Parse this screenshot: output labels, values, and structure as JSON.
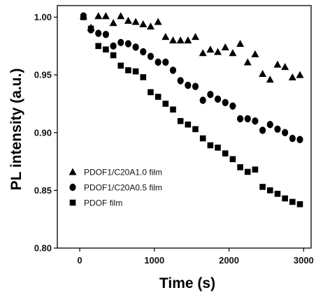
{
  "chart_data": {
    "type": "scatter",
    "title": "",
    "xlabel": "Time (s)",
    "ylabel": "PL intensity (a.u.)",
    "xlim": [
      -300,
      3100
    ],
    "ylim": [
      0.8,
      1.01
    ],
    "xticks": [
      0,
      1000,
      2000,
      3000
    ],
    "xtick_labels": [
      "0",
      "1000",
      "2000",
      "3000"
    ],
    "yticks": [
      0.8,
      0.85,
      0.9,
      0.95,
      1.0
    ],
    "ytick_labels": [
      "0.80",
      "0.85",
      "0.90",
      "0.95",
      "1.00"
    ],
    "grid": false,
    "legend_position": "bottom-left",
    "series": [
      {
        "name": "PDOF1/C20A1.0 film",
        "marker": "triangle",
        "color": "#000000",
        "x": [
          50,
          150,
          250,
          350,
          450,
          550,
          650,
          750,
          850,
          950,
          1050,
          1150,
          1250,
          1350,
          1450,
          1550,
          1650,
          1750,
          1850,
          1950,
          2050,
          2150,
          2250,
          2350,
          2450,
          2550,
          2650,
          2750,
          2850,
          2950
        ],
        "y": [
          1.001,
          0.991,
          1.001,
          1.001,
          0.995,
          1.001,
          0.997,
          0.996,
          0.994,
          0.992,
          0.996,
          0.983,
          0.98,
          0.98,
          0.98,
          0.983,
          0.969,
          0.972,
          0.97,
          0.974,
          0.969,
          0.977,
          0.961,
          0.968,
          0.951,
          0.946,
          0.959,
          0.957,
          0.948,
          0.95
        ]
      },
      {
        "name": "PDOF1/C20A0.5 film",
        "marker": "circle",
        "color": "#000000",
        "x": [
          50,
          150,
          250,
          350,
          450,
          550,
          650,
          750,
          850,
          950,
          1050,
          1150,
          1250,
          1350,
          1450,
          1550,
          1650,
          1750,
          1850,
          1950,
          2050,
          2150,
          2250,
          2350,
          2450,
          2550,
          2650,
          2750,
          2850,
          2950
        ],
        "y": [
          1.001,
          0.989,
          0.986,
          0.985,
          0.975,
          0.978,
          0.977,
          0.974,
          0.97,
          0.966,
          0.961,
          0.961,
          0.954,
          0.945,
          0.941,
          0.94,
          0.928,
          0.933,
          0.929,
          0.926,
          0.923,
          0.912,
          0.912,
          0.91,
          0.902,
          0.907,
          0.903,
          0.9,
          0.895,
          0.894
        ]
      },
      {
        "name": "PDOF film",
        "marker": "square",
        "color": "#000000",
        "x": [
          50,
          150,
          250,
          350,
          450,
          550,
          650,
          750,
          850,
          950,
          1050,
          1150,
          1250,
          1350,
          1450,
          1550,
          1650,
          1750,
          1850,
          1950,
          2050,
          2150,
          2250,
          2350,
          2450,
          2550,
          2650,
          2750,
          2850,
          2950
        ],
        "y": [
          1.0,
          0.99,
          0.975,
          0.972,
          0.967,
          0.958,
          0.954,
          0.953,
          0.948,
          0.935,
          0.931,
          0.925,
          0.92,
          0.91,
          0.907,
          0.903,
          0.895,
          0.889,
          0.887,
          0.882,
          0.877,
          0.87,
          0.866,
          0.868,
          0.853,
          0.85,
          0.847,
          0.843,
          0.84,
          0.838
        ]
      }
    ]
  }
}
